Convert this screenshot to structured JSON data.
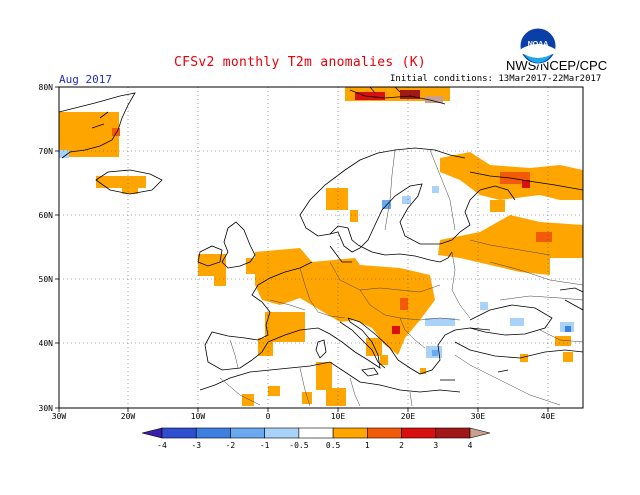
{
  "title": "CFSv2 monthly T2m anomalies (K)",
  "agency": "NWS/NCEP/CPC",
  "logo_text": "NOAA",
  "month": "Aug 2017",
  "initial_conditions": "Initial conditions: 13Mar2017-22Mar2017",
  "axes": {
    "lon_labels": [
      "30W",
      "20W",
      "10W",
      "0",
      "10E",
      "20E",
      "30E",
      "40E"
    ],
    "lat_labels": [
      "80N",
      "70N",
      "60N",
      "50N",
      "40N",
      "30N"
    ]
  },
  "colorbar": {
    "tick_labels": [
      "-4",
      "-3",
      "-2",
      "-1",
      "-0.5",
      "0.5",
      "1",
      "2",
      "3",
      "4"
    ],
    "colors": [
      "#3b1fa8",
      "#2d4fd0",
      "#3f7fe0",
      "#6aa8f0",
      "#a8d2f8",
      "#ffffff",
      "#ffa500",
      "#f25a0a",
      "#d81010",
      "#a01818",
      "#c9a08c"
    ]
  }
}
